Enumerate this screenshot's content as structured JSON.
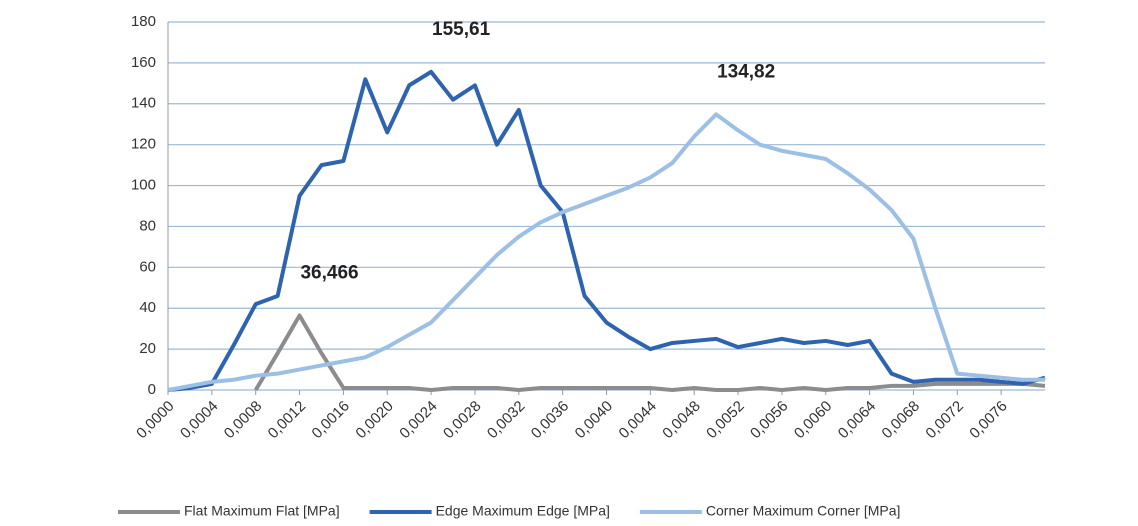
{
  "chart_data": {
    "type": "line",
    "x": [
      0,
      0.0002,
      0.0004,
      0.0006,
      0.0008,
      0.001,
      0.0012,
      0.0014,
      0.0016,
      0.0018,
      0.002,
      0.0022,
      0.0024,
      0.0026,
      0.0028,
      0.003,
      0.0032,
      0.0034,
      0.0036,
      0.0038,
      0.004,
      0.0042,
      0.0044,
      0.0046,
      0.0048,
      0.005,
      0.0052,
      0.0054,
      0.0056,
      0.0058,
      0.006,
      0.0062,
      0.0064,
      0.0066,
      0.0068,
      0.007,
      0.0072,
      0.0074,
      0.0076,
      0.0078,
      0.008
    ],
    "series": [
      {
        "name": "Flat Maximum Flat [MPa]",
        "color": "#8c8c8c",
        "values": [
          null,
          null,
          null,
          null,
          0,
          18,
          36.466,
          18,
          1,
          1,
          1,
          1,
          0,
          1,
          1,
          1,
          0,
          1,
          1,
          1,
          1,
          1,
          1,
          0,
          1,
          0,
          0,
          1,
          0,
          1,
          0,
          1,
          1,
          2,
          2,
          3,
          3,
          3,
          3,
          3,
          2
        ],
        "value_labels": [
          null,
          null,
          null,
          null,
          null,
          null,
          "36,466",
          null,
          null,
          null,
          null,
          null,
          null,
          null,
          null,
          null,
          null,
          null,
          null,
          null,
          null,
          null,
          null,
          null,
          null,
          null,
          null,
          null,
          null,
          null,
          null,
          null,
          null,
          null,
          null,
          null,
          null,
          null,
          null,
          null,
          null
        ]
      },
      {
        "name": "Edge Maximum Edge [MPa]",
        "color": "#2e63b0",
        "values": [
          0,
          1,
          3,
          22,
          42,
          46,
          95,
          110,
          112,
          152,
          126,
          149,
          155.61,
          142,
          149,
          120,
          137,
          100,
          87,
          46,
          33,
          26,
          20,
          23,
          24,
          25,
          21,
          23,
          25,
          23,
          24,
          22,
          24,
          8,
          4,
          5,
          5,
          5,
          4,
          3,
          6
        ],
        "value_labels": [
          null,
          null,
          null,
          null,
          null,
          null,
          null,
          null,
          null,
          null,
          null,
          null,
          "155,61",
          null,
          null,
          null,
          null,
          null,
          null,
          null,
          null,
          null,
          null,
          null,
          null,
          null,
          null,
          null,
          null,
          null,
          null,
          null,
          null,
          null,
          null,
          null,
          null,
          null,
          null,
          null,
          null
        ]
      },
      {
        "name": "Corner Maximum Corner [MPa]",
        "color": "#9cbfe6",
        "values": [
          0,
          2,
          4,
          5,
          7,
          8,
          10,
          12,
          14,
          16,
          21,
          27,
          33,
          44,
          55,
          66,
          75,
          82,
          87,
          91,
          95,
          99,
          104,
          111,
          124,
          134.82,
          127,
          120,
          117,
          115,
          113,
          106,
          98,
          88,
          74,
          40,
          8,
          7,
          6,
          5,
          5
        ],
        "value_labels": [
          null,
          null,
          null,
          null,
          null,
          null,
          null,
          null,
          null,
          null,
          null,
          null,
          null,
          null,
          null,
          null,
          null,
          null,
          null,
          null,
          null,
          null,
          null,
          null,
          null,
          "134,82",
          null,
          null,
          null,
          null,
          null,
          null,
          null,
          null,
          null,
          null,
          null,
          null,
          null,
          null,
          null
        ]
      }
    ],
    "xlim": [
      0,
      0.008
    ],
    "xticks": [
      {
        "value": 0,
        "label": "0,0000"
      },
      {
        "value": 0.0004,
        "label": "0,0004"
      },
      {
        "value": 0.0008,
        "label": "0,0008"
      },
      {
        "value": 0.0012,
        "label": "0,0012"
      },
      {
        "value": 0.0016,
        "label": "0,0016"
      },
      {
        "value": 0.002,
        "label": "0,0020"
      },
      {
        "value": 0.0024,
        "label": "0,0024"
      },
      {
        "value": 0.0028,
        "label": "0,0028"
      },
      {
        "value": 0.0032,
        "label": "0,0032"
      },
      {
        "value": 0.0036,
        "label": "0,0036"
      },
      {
        "value": 0.004,
        "label": "0,0040"
      },
      {
        "value": 0.0044,
        "label": "0,0044"
      },
      {
        "value": 0.0048,
        "label": "0,0048"
      },
      {
        "value": 0.0052,
        "label": "0,0052"
      },
      {
        "value": 0.0056,
        "label": "0,0056"
      },
      {
        "value": 0.006,
        "label": "0,0060"
      },
      {
        "value": 0.0064,
        "label": "0,0064"
      },
      {
        "value": 0.0068,
        "label": "0,0068"
      },
      {
        "value": 0.0072,
        "label": "0,0072"
      },
      {
        "value": 0.0076,
        "label": "0,0076"
      }
    ],
    "ylim": [
      0,
      180
    ],
    "yticks": [
      0,
      20,
      40,
      60,
      80,
      100,
      120,
      140,
      160,
      180
    ],
    "grid": true,
    "legend": "bottom"
  }
}
